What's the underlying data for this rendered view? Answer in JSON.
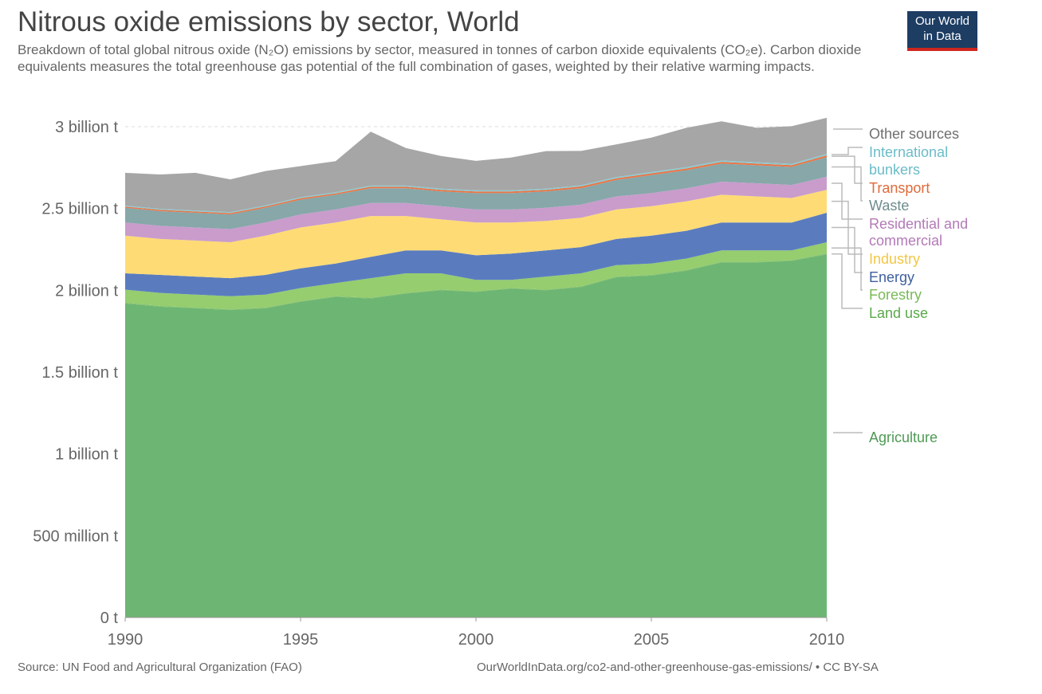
{
  "header": {
    "title": "Nitrous oxide emissions by sector, World",
    "subtitle": "Breakdown of total global nitrous oxide (N₂O) emissions by sector, measured in tonnes of carbon dioxide equivalents (CO₂e). Carbon dioxide equivalents measures the total greenhouse gas potential of the full combination of gases, weighted by their relative warming impacts."
  },
  "logo": {
    "line1": "Our World",
    "line2": "in Data"
  },
  "footer": {
    "source": "Source: UN Food and Agricultural Organization (FAO)",
    "url": "OurWorldInData.org/co2-and-other-greenhouse-gas-emissions/ • CC BY-SA"
  },
  "chart_data": {
    "type": "area",
    "stacked": true,
    "title": "Nitrous oxide emissions by sector, World",
    "xlabel": "",
    "ylabel": "",
    "x": [
      1990,
      1991,
      1992,
      1993,
      1994,
      1995,
      1996,
      1997,
      1998,
      1999,
      2000,
      2001,
      2002,
      2003,
      2004,
      2005,
      2006,
      2007,
      2008,
      2009,
      2010
    ],
    "xlim": [
      1990,
      2010
    ],
    "ylim": [
      0,
      3000000000
    ],
    "x_ticks": [
      "1990",
      "1995",
      "2000",
      "2005",
      "2010"
    ],
    "y_ticks": [
      "0 t",
      "500 million t",
      "1 billion t",
      "1.5 billion t",
      "2 billion t",
      "2.5 billion t",
      "3 billion t"
    ],
    "y_tick_values": [
      0,
      500000000,
      1000000000,
      1500000000,
      2000000000,
      2500000000,
      3000000000
    ],
    "grid": "horizontal dashed",
    "legend_position": "right",
    "series": [
      {
        "name": "Agriculture",
        "label": "Agriculture",
        "color": "#6db573",
        "values": [
          1.92,
          1.9,
          1.89,
          1.88,
          1.89,
          1.93,
          1.96,
          1.95,
          1.98,
          2.0,
          1.99,
          2.01,
          2.0,
          2.02,
          2.08,
          2.09,
          2.12,
          2.17,
          2.17,
          2.18,
          2.22
        ]
      },
      {
        "name": "Land use",
        "label": "Land use",
        "color": "#7bbd63",
        "values": [
          0.004,
          0.004,
          0.004,
          0.004,
          0.004,
          0.004,
          0.004,
          0.004,
          0.004,
          0.004,
          0.004,
          0.004,
          0.004,
          0.004,
          0.004,
          0.004,
          0.004,
          0.004,
          0.004,
          0.004,
          0.004
        ]
      },
      {
        "name": "Forestry",
        "label": "Forestry",
        "color": "#95cd6f",
        "values": [
          0.08,
          0.08,
          0.08,
          0.08,
          0.08,
          0.08,
          0.08,
          0.12,
          0.12,
          0.1,
          0.07,
          0.05,
          0.08,
          0.08,
          0.07,
          0.07,
          0.07,
          0.07,
          0.07,
          0.06,
          0.07
        ]
      },
      {
        "name": "Energy",
        "label": "Energy",
        "color": "#5a7cbf",
        "values": [
          0.1,
          0.11,
          0.11,
          0.11,
          0.12,
          0.12,
          0.12,
          0.13,
          0.14,
          0.14,
          0.15,
          0.16,
          0.16,
          0.16,
          0.16,
          0.17,
          0.17,
          0.17,
          0.17,
          0.17,
          0.18
        ]
      },
      {
        "name": "Industry",
        "label": "Industry",
        "color": "#fedb75",
        "values": [
          0.23,
          0.22,
          0.22,
          0.22,
          0.24,
          0.25,
          0.25,
          0.25,
          0.21,
          0.19,
          0.2,
          0.19,
          0.18,
          0.18,
          0.18,
          0.18,
          0.18,
          0.17,
          0.16,
          0.15,
          0.14
        ]
      },
      {
        "name": "Residential and commercial",
        "label": "Residential and commercial",
        "color": "#c99ccc",
        "values": [
          0.08,
          0.08,
          0.08,
          0.08,
          0.08,
          0.08,
          0.08,
          0.08,
          0.08,
          0.08,
          0.08,
          0.08,
          0.08,
          0.08,
          0.08,
          0.08,
          0.08,
          0.08,
          0.08,
          0.08,
          0.08
        ]
      },
      {
        "name": "Waste",
        "label": "Waste",
        "color": "#87a7a9",
        "values": [
          0.09,
          0.09,
          0.09,
          0.09,
          0.09,
          0.09,
          0.09,
          0.09,
          0.09,
          0.09,
          0.1,
          0.1,
          0.1,
          0.1,
          0.1,
          0.11,
          0.11,
          0.11,
          0.11,
          0.11,
          0.12
        ]
      },
      {
        "name": "Transport",
        "label": "Transport",
        "color": "#e8774a",
        "values": [
          0.008,
          0.008,
          0.008,
          0.008,
          0.009,
          0.009,
          0.009,
          0.01,
          0.01,
          0.01,
          0.01,
          0.01,
          0.01,
          0.011,
          0.011,
          0.011,
          0.011,
          0.011,
          0.011,
          0.011,
          0.011
        ]
      },
      {
        "name": "International bunkers",
        "label": "International bunkers",
        "color": "#86cbd3",
        "values": [
          0.006,
          0.006,
          0.006,
          0.006,
          0.006,
          0.006,
          0.006,
          0.006,
          0.006,
          0.007,
          0.007,
          0.007,
          0.007,
          0.007,
          0.007,
          0.008,
          0.008,
          0.008,
          0.008,
          0.008,
          0.009
        ]
      },
      {
        "name": "Other sources",
        "label": "Other sources",
        "color": "#a6a6a6",
        "values": [
          0.2,
          0.21,
          0.23,
          0.2,
          0.21,
          0.19,
          0.19,
          0.33,
          0.23,
          0.2,
          0.18,
          0.2,
          0.23,
          0.21,
          0.2,
          0.21,
          0.24,
          0.24,
          0.21,
          0.23,
          0.22
        ]
      }
    ],
    "values_unit": "billion t"
  }
}
